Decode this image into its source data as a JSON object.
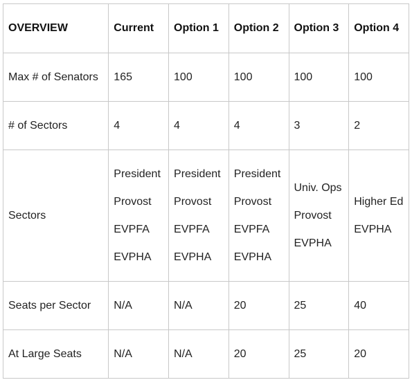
{
  "table": {
    "headers": [
      "OVERVIEW",
      "Current",
      "Option 1",
      "Option 2",
      "Option 3",
      "Option 4"
    ],
    "rows": [
      {
        "label": "Max # of Senators",
        "cells": [
          [
            "165"
          ],
          [
            "100"
          ],
          [
            "100"
          ],
          [
            "100"
          ],
          [
            "100"
          ]
        ]
      },
      {
        "label": "# of Sectors",
        "cells": [
          [
            "4"
          ],
          [
            "4"
          ],
          [
            "4"
          ],
          [
            "3"
          ],
          [
            "2"
          ]
        ]
      },
      {
        "label": "Sectors",
        "cells": [
          [
            "President",
            "Provost",
            "EVPFA",
            "EVPHA"
          ],
          [
            "President",
            "Provost",
            "EVPFA",
            "EVPHA"
          ],
          [
            "President",
            "Provost",
            "EVPFA",
            "EVPHA"
          ],
          [
            "Univ. Ops",
            "Provost",
            "EVPHA"
          ],
          [
            "Higher Ed",
            "EVPHA"
          ]
        ]
      },
      {
        "label": "Seats per Sector",
        "cells": [
          [
            "N/A"
          ],
          [
            "N/A"
          ],
          [
            "20"
          ],
          [
            "25"
          ],
          [
            "40"
          ]
        ]
      },
      {
        "label": "At Large Seats",
        "cells": [
          [
            "N/A"
          ],
          [
            "N/A"
          ],
          [
            "20"
          ],
          [
            "25"
          ],
          [
            "20"
          ]
        ]
      }
    ]
  }
}
